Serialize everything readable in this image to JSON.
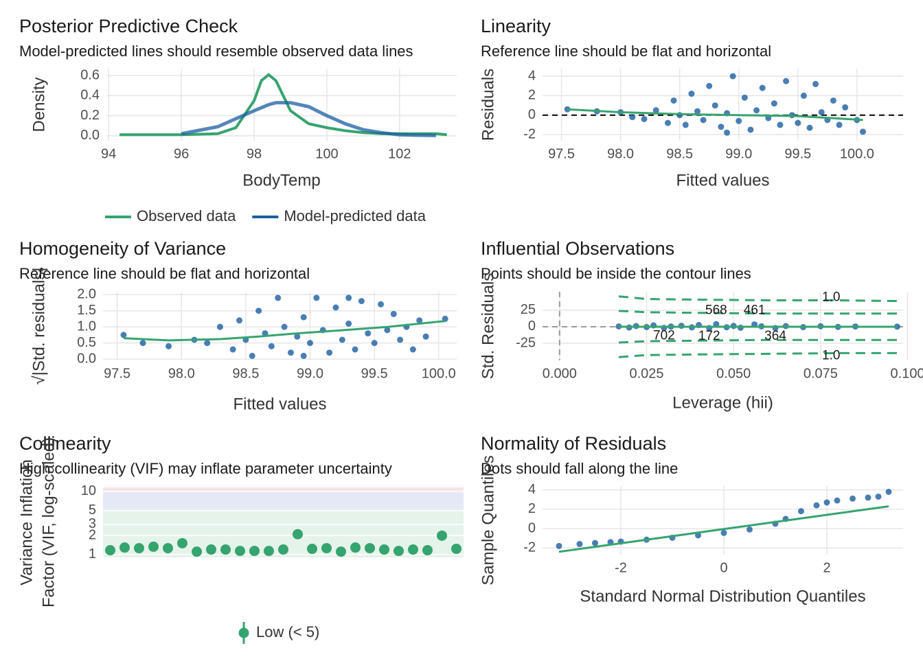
{
  "chart_data": [
    {
      "type": "line",
      "title": "Posterior Predictive Check",
      "subtitle": "Model-predicted lines should resemble observed data lines",
      "x_label": "BodyTemp",
      "y_label": "Density",
      "x": [
        94.3,
        95,
        96,
        97,
        97.5,
        98,
        98.2,
        98.4,
        98.6,
        98.8,
        99,
        99.5,
        100,
        100.5,
        101,
        101.5,
        102,
        102.5,
        103,
        103.3
      ],
      "series": [
        {
          "name": "Observed data",
          "color": "#35a46f",
          "values": [
            0.01,
            0.01,
            0.01,
            0.02,
            0.08,
            0.35,
            0.55,
            0.61,
            0.55,
            0.4,
            0.25,
            0.12,
            0.08,
            0.05,
            0.03,
            0.02,
            0.02,
            0.02,
            0.02,
            0.01
          ]
        },
        {
          "name": "Model-predicted data",
          "color": "#1b5ea0",
          "values": [
            null,
            null,
            0.02,
            0.09,
            0.17,
            0.25,
            0.28,
            0.31,
            0.33,
            0.33,
            0.33,
            0.29,
            0.2,
            0.12,
            0.06,
            0.03,
            0.01,
            0.005,
            0.002,
            null
          ]
        }
      ],
      "xlim": [
        93.94,
        103.57
      ],
      "xticks": [
        94,
        96,
        98,
        100,
        102
      ],
      "ylim": [
        -0.05,
        0.67
      ],
      "yticks": [
        {
          "value": 0,
          "label": "0.0"
        },
        0.2,
        0.4,
        0.6
      ],
      "grid": true,
      "legend": "bottom"
    },
    {
      "type": "scatter",
      "title": "Linearity",
      "subtitle": "Reference line should be flat and horizontal",
      "x_label": "Fitted values",
      "y_label": "Residuals",
      "color": "#1b5ea0",
      "x": [
        97.55,
        97.8,
        98.0,
        98.1,
        98.3,
        98.4,
        98.45,
        98.5,
        98.55,
        98.6,
        98.65,
        98.7,
        98.75,
        98.8,
        98.85,
        98.9,
        98.95,
        99.0,
        99.05,
        99.1,
        99.15,
        99.2,
        99.25,
        99.3,
        99.35,
        99.4,
        99.45,
        99.5,
        99.55,
        99.6,
        99.65,
        99.7,
        99.75,
        99.8,
        99.85,
        99.9,
        100.0,
        100.05,
        98.2,
        98.9
      ],
      "values": [
        0.6,
        0.4,
        0.3,
        -0.2,
        0.5,
        -0.8,
        1.5,
        0.0,
        -1.0,
        2.2,
        0.4,
        -0.5,
        3.0,
        1.0,
        -1.2,
        0.2,
        4.0,
        -0.6,
        1.8,
        -1.5,
        0.5,
        2.8,
        -0.3,
        1.2,
        -1.0,
        3.5,
        0.0,
        -0.8,
        2.0,
        -1.3,
        3.2,
        0.3,
        -0.5,
        1.5,
        -1.0,
        0.8,
        -0.5,
        -1.7,
        -0.4,
        -1.8
      ],
      "reference_y": 0,
      "smooth": {
        "color": "#35a46f",
        "x": [
          97.55,
          98.0,
          98.5,
          99.0,
          99.5,
          100.05
        ],
        "values": [
          0.6,
          0.3,
          0.1,
          0.0,
          -0.1,
          -0.5
        ]
      },
      "xlim": [
        97.34,
        100.39
      ],
      "xticks": [
        97.5,
        {
          "value": 98,
          "label": "98.0"
        },
        98.5,
        {
          "value": 99,
          "label": "99.0"
        },
        99.5,
        {
          "value": 100,
          "label": "100.0"
        }
      ],
      "ylim": [
        -2.63,
        4.78
      ],
      "yticks": [
        -2,
        0,
        2,
        4
      ],
      "grid": true
    },
    {
      "type": "scatter",
      "title": "Homogeneity of Variance",
      "subtitle": "Reference line should be flat and horizontal",
      "x_label": "Fitted values",
      "y_label": "√|Std. residuals|",
      "color": "#1b5ea0",
      "x": [
        97.55,
        97.7,
        97.9,
        98.1,
        98.3,
        98.4,
        98.45,
        98.5,
        98.55,
        98.6,
        98.65,
        98.7,
        98.75,
        98.8,
        98.85,
        98.9,
        98.95,
        99.0,
        99.05,
        99.1,
        99.15,
        99.2,
        99.25,
        99.3,
        99.35,
        99.4,
        99.45,
        99.5,
        99.55,
        99.6,
        99.65,
        99.7,
        99.75,
        99.8,
        99.85,
        99.9,
        100.05,
        98.2,
        98.95,
        99.3
      ],
      "values": [
        0.75,
        0.5,
        0.4,
        0.6,
        1.0,
        0.3,
        1.2,
        0.6,
        0.1,
        1.5,
        0.8,
        0.4,
        1.9,
        1.0,
        0.2,
        0.7,
        1.3,
        0.5,
        1.9,
        0.9,
        0.2,
        1.6,
        0.6,
        1.1,
        0.3,
        1.8,
        0.8,
        0.5,
        1.7,
        0.9,
        1.4,
        0.6,
        1.0,
        0.3,
        1.2,
        0.7,
        1.25,
        0.5,
        0.1,
        1.9
      ],
      "smooth": {
        "color": "#35a46f",
        "x": [
          97.55,
          97.9,
          98.3,
          98.6,
          98.9,
          99.2,
          99.6,
          100.05
        ],
        "values": [
          0.65,
          0.58,
          0.62,
          0.7,
          0.8,
          0.88,
          1.0,
          1.18
        ]
      },
      "xlim": [
        97.39,
        100.14
      ],
      "xticks": [
        97.5,
        {
          "value": 98,
          "label": "98.0"
        },
        98.5,
        {
          "value": 99,
          "label": "99.0"
        },
        99.5,
        {
          "value": 100,
          "label": "100.0"
        }
      ],
      "ylim": [
        -0.04,
        2.09
      ],
      "yticks": [
        {
          "value": 0,
          "label": "0.0"
        },
        0.5,
        {
          "value": 1,
          "label": "1.0"
        },
        1.5,
        {
          "value": 2,
          "label": "2.0"
        }
      ],
      "grid": true
    },
    {
      "type": "scatter",
      "title": "Influential Observations",
      "subtitle": "Points should be inside the contour lines",
      "x_label": "Leverage (hii)",
      "y_label": "Std. Residuals",
      "color": "#1b5ea0",
      "x": [
        0.017,
        0.02,
        0.022,
        0.025,
        0.027,
        0.03,
        0.032,
        0.035,
        0.038,
        0.04,
        0.043,
        0.045,
        0.048,
        0.05,
        0.052,
        0.056,
        0.058,
        0.062,
        0.065,
        0.07,
        0.075,
        0.08,
        0.085,
        0.097
      ],
      "values": [
        0.5,
        -1.2,
        1.0,
        -0.5,
        2.0,
        -1.8,
        0.3,
        1.5,
        -1.0,
        2.5,
        -2.0,
        3.8,
        -0.8,
        1.2,
        -1.5,
        3.5,
        0.6,
        -2.0,
        1.0,
        -0.6,
        0.8,
        -0.3,
        0.4,
        0.2
      ],
      "point_labels": [
        null,
        null,
        null,
        null,
        null,
        "702",
        null,
        null,
        null,
        null,
        "172",
        "568",
        null,
        null,
        null,
        "461",
        null,
        "364",
        null,
        null,
        null,
        null,
        null,
        null
      ],
      "reference_x": 0,
      "reference_y": 0,
      "contours": [
        {
          "name": "1.0",
          "color": "#35a46f",
          "x": [
            0.017,
            0.025,
            0.04,
            0.06,
            0.08,
            0.097
          ],
          "values": [
            46,
            42,
            41,
            40,
            40,
            39
          ]
        },
        {
          "color": "#35a46f",
          "x": [
            0.017,
            0.025,
            0.04,
            0.06,
            0.08,
            0.097
          ],
          "values": [
            24,
            22,
            21,
            20,
            20,
            20
          ]
        },
        {
          "color": "#35a46f",
          "x": [
            0.017,
            0.025,
            0.04,
            0.06,
            0.08,
            0.097
          ],
          "values": [
            -24,
            -22,
            -21,
            -20,
            -20,
            -20
          ]
        },
        {
          "name": "1.0",
          "color": "#35a46f",
          "x": [
            0.017,
            0.025,
            0.04,
            0.06,
            0.08,
            0.097
          ],
          "values": [
            -46,
            -43,
            -42,
            -41,
            -40,
            -40
          ]
        }
      ],
      "smooth": {
        "color": "#35a46f",
        "x": [
          0.017,
          0.097
        ],
        "values": [
          0,
          0
        ]
      },
      "xlim": [
        -0.0049,
        0.0987
      ],
      "xticks": [
        {
          "value": 0,
          "label": "0.000"
        },
        {
          "value": 0.025,
          "label": "0.025"
        },
        {
          "value": 0.05,
          "label": "0.050"
        },
        {
          "value": 0.075,
          "label": "0.075"
        },
        {
          "value": 0.1,
          "label": "0.100"
        }
      ],
      "ylim": [
        -51,
        53
      ],
      "yticks": [
        -25,
        0,
        25
      ],
      "grid": true
    },
    {
      "type": "dot",
      "title": "Collinearity",
      "subtitle": "High collinearity (VIF) may inflate parameter uncertainty",
      "y_label": [
        "Variance Inflation",
        "Factor (VIF, log-scaled)"
      ],
      "categories": [
        null,
        null,
        null,
        null,
        null,
        null,
        null,
        null,
        null,
        null,
        null,
        null,
        null,
        null,
        null,
        null,
        null,
        null,
        null,
        null,
        null,
        null,
        null,
        null,
        null
      ],
      "series": [
        {
          "name": "Low (< 5)",
          "color": "#35a46f",
          "values": [
            1.17,
            1.29,
            1.26,
            1.33,
            1.26,
            1.51,
            1.11,
            1.2,
            1.2,
            1.14,
            1.14,
            1.14,
            1.2,
            2.1,
            1.23,
            1.26,
            1.11,
            1.29,
            1.26,
            1.2,
            1.14,
            1.2,
            1.17,
            1.99,
            1.23
          ]
        }
      ],
      "bands": [
        {
          "from": 0.9,
          "to": 5,
          "color": "#dff0e5"
        },
        {
          "from": 5,
          "to": 10,
          "color": "#dde4f2"
        },
        {
          "from": 10,
          "to": 11.6,
          "color": "#f5dede"
        }
      ],
      "log_y": true,
      "ylim": [
        0.9,
        11.6
      ],
      "yticks": [
        1,
        2,
        3,
        5,
        10
      ],
      "grid": true,
      "legend": "bottom"
    },
    {
      "type": "scatter",
      "title": "Normality of Residuals",
      "subtitle": "Dots should fall along the line",
      "x_label": "Standard Normal Distribution Quantiles",
      "y_label": "Sample Quantiles",
      "color": "#1b5ea0",
      "x": [
        -3.2,
        -2.8,
        -2.5,
        -2.2,
        -2,
        -1.5,
        -1,
        -0.5,
        0,
        0.5,
        1,
        1.2,
        1.5,
        1.8,
        2,
        2.2,
        2.5,
        2.8,
        3,
        3.2
      ],
      "values": [
        -1.8,
        -1.6,
        -1.5,
        -1.4,
        -1.35,
        -1.15,
        -0.95,
        -0.7,
        -0.45,
        -0.1,
        0.5,
        1.0,
        1.8,
        2.4,
        2.7,
        2.9,
        3.1,
        3.2,
        3.3,
        3.8
      ],
      "smooth": {
        "color": "#35a46f",
        "x": [
          -3.2,
          3.2
        ],
        "values": [
          -2.4,
          2.3
        ]
      },
      "xlim": [
        -3.52,
        3.48
      ],
      "xticks": [
        -2,
        0,
        2
      ],
      "ylim": [
        -2.7,
        4.4
      ],
      "yticks": [
        -2,
        0,
        2,
        4
      ],
      "grid": true
    }
  ]
}
